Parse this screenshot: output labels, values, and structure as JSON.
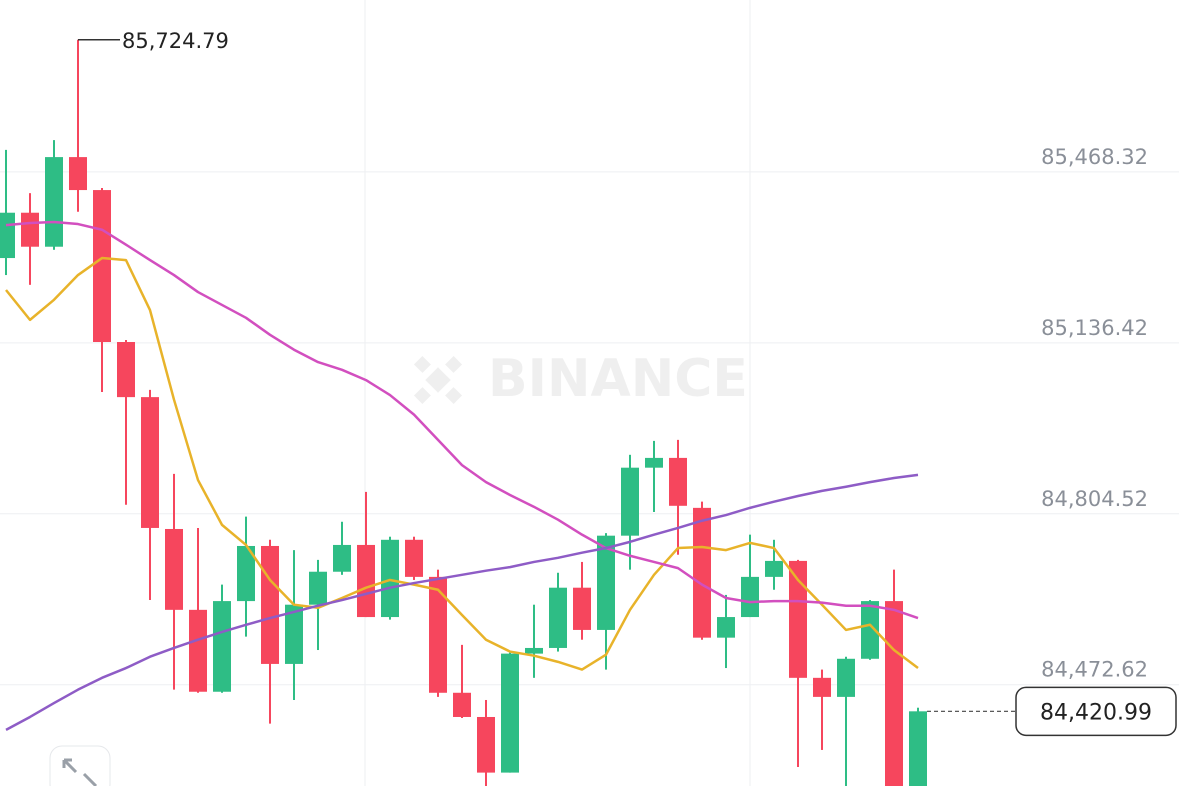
{
  "chart_data": {
    "type": "candlestick",
    "watermark": "BINANCE",
    "ylim": [
      84276,
      85802
    ],
    "yticks": [
      {
        "value": 85468.32,
        "label": "85,468.32"
      },
      {
        "value": 85136.42,
        "label": "85,136.42"
      },
      {
        "value": 84804.52,
        "label": "84,804.52"
      },
      {
        "value": 84472.62,
        "label": "84,472.62"
      }
    ],
    "grid": true,
    "high_label": {
      "value": 85724.79,
      "label": "85,724.79"
    },
    "last_price": {
      "value": 84420.99,
      "label": "84,420.99"
    },
    "candles": {
      "up_color": "#2ebd85",
      "down_color": "#f6465d",
      "open": [
        85301,
        85389,
        85323,
        85497,
        85433,
        85138,
        85031,
        84775,
        84618,
        84459,
        84635,
        84742,
        84513,
        84628,
        84692,
        84744,
        84604,
        84754,
        84682,
        84457,
        84410,
        84302,
        84533,
        84544,
        84661,
        84579,
        84762,
        84894,
        84913,
        84816,
        84564,
        84604,
        84682,
        84713,
        84486,
        84449,
        84523,
        84635,
        84262
      ],
      "high": [
        85511,
        85427,
        85530,
        85724.79,
        85437,
        85142,
        85045,
        84882,
        84777,
        84667,
        84799,
        84754,
        84734,
        84715,
        84789,
        84847,
        84760,
        84760,
        84696,
        84550,
        84443,
        84535,
        84628,
        84690,
        84711,
        84767,
        84919,
        84946,
        84948,
        84828,
        84647,
        84764,
        84754,
        84715,
        84502,
        84527,
        84637,
        84696,
        84428
      ],
      "low": [
        85268,
        85249,
        85317,
        85391,
        85041,
        84822,
        84637,
        84463,
        84457,
        84457,
        84566,
        84397,
        84443,
        84540,
        84686,
        84604,
        84599,
        84676,
        84449,
        84408,
        84267,
        84302,
        84486,
        84537,
        84560,
        84502,
        84696,
        84808,
        84725,
        84560,
        84505,
        84604,
        84657,
        84313,
        84346,
        84267,
        84521,
        84257,
        84257
      ],
      "close": [
        85389,
        85323,
        85497,
        85433,
        85138,
        85031,
        84777,
        84618,
        84459,
        84635,
        84742,
        84513,
        84628,
        84692,
        84744,
        84604,
        84754,
        84682,
        84457,
        84410,
        84302,
        84533,
        84544,
        84661,
        84579,
        84762,
        84894,
        84913,
        84820,
        84564,
        84604,
        84682,
        84713,
        84486,
        84449,
        84523,
        84635,
        84262,
        84420.99
      ]
    },
    "lines": [
      {
        "color": "#e8b32a",
        "values": [
          85239,
          85181,
          85220,
          85268,
          85301,
          85297,
          85200,
          85026,
          84870,
          84783,
          84744,
          84676,
          84628,
          84622,
          84641,
          84661,
          84676,
          84667,
          84657,
          84608,
          84560,
          84537,
          84529,
          84517,
          84502,
          84531,
          84618,
          84686,
          84738,
          84740,
          84734,
          84748,
          84738,
          84676,
          84628,
          84579,
          84589,
          84540,
          84505
        ]
      },
      {
        "color": "#d24fbf",
        "values": [
          85365,
          85369,
          85371,
          85367,
          85356,
          85327,
          85297,
          85268,
          85235,
          85210,
          85185,
          85152,
          85123,
          85099,
          85084,
          85064,
          85035,
          84997,
          84948,
          84899,
          84866,
          84841,
          84818,
          84793,
          84764,
          84738,
          84723,
          84711,
          84699,
          84667,
          84641,
          84633,
          84635,
          84635,
          84632,
          84626,
          84626,
          84618,
          84602
        ]
      },
      {
        "color": "#8e5cc6",
        "values": [
          84385,
          84410,
          84437,
          84463,
          84486,
          84505,
          84527,
          84544,
          84560,
          84575,
          84589,
          84602,
          84614,
          84626,
          84637,
          84649,
          84661,
          84670,
          84678,
          84686,
          84694,
          84701,
          84711,
          84719,
          84729,
          84738,
          84750,
          84764,
          84777,
          84791,
          84802,
          84816,
          84828,
          84839,
          84849,
          84857,
          84866,
          84874,
          84880
        ]
      }
    ]
  }
}
